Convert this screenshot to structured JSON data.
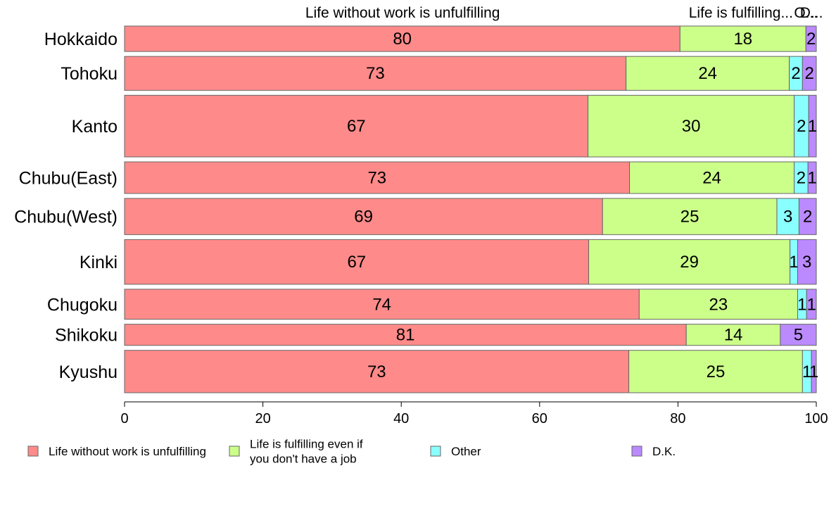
{
  "chart_data": {
    "type": "bar",
    "orientation": "horizontal",
    "stacked": true,
    "categories": [
      "Hokkaido",
      "Tohoku",
      "Kanto",
      "Chubu(East)",
      "Chubu(West)",
      "Kinki",
      "Chugoku",
      "Shikoku",
      "Kyushu"
    ],
    "relative_bar_widths": [
      0.66,
      0.88,
      1.6,
      0.82,
      0.94,
      1.16,
      0.78,
      0.55,
      1.1
    ],
    "series": [
      {
        "name": "Life without work is unfulfilling",
        "color": "#ff8a8a",
        "values": [
          80.3,
          72.5,
          67.0,
          73.0,
          69.1,
          67.1,
          74.4,
          81.2,
          72.9
        ],
        "labels": [
          "80",
          "73",
          "67",
          "73",
          "69",
          "67",
          "74",
          "81",
          "73"
        ]
      },
      {
        "name": "Life is fulfilling even if you don't have a job",
        "color": "#ccff8a",
        "values": [
          18.2,
          23.6,
          29.8,
          23.8,
          25.2,
          29.1,
          22.9,
          13.6,
          25.1
        ],
        "labels": [
          "18",
          "24",
          "30",
          "24",
          "25",
          "29",
          "23",
          "14",
          "25"
        ]
      },
      {
        "name": "Other",
        "color": "#8affff",
        "values": [
          0,
          1.9,
          2.1,
          2.0,
          3.2,
          1.1,
          1.3,
          0,
          1.3
        ],
        "labels": [
          "",
          "2",
          "2",
          "2",
          "3",
          "1",
          "1",
          "",
          "1"
        ]
      },
      {
        "name": "D.K.",
        "color": "#bb8aff",
        "values": [
          1.5,
          2.0,
          1.1,
          1.2,
          2.5,
          2.7,
          1.4,
          5.2,
          0.7
        ],
        "labels": [
          "2",
          "2",
          "1",
          "1",
          "2",
          "3",
          "1",
          "5",
          "1"
        ]
      }
    ],
    "column_headers": [
      {
        "text": "Life without work is unfulfilling",
        "at": 40.2
      },
      {
        "text": "Life is fulfilling...",
        "at": 89.1
      },
      {
        "text": "O...",
        "at": 98.5
      },
      {
        "text": "D...",
        "at": 99.3
      }
    ],
    "x_ticks": [
      "0",
      "20",
      "40",
      "60",
      "80",
      "100"
    ],
    "xlim": [
      0,
      100
    ],
    "legend_position": "bottom",
    "legend": [
      {
        "lines": [
          "Life without work is unfulfilling"
        ],
        "color": "#ff8a8a"
      },
      {
        "lines": [
          "Life is fulfilling even if",
          "you don't have a job"
        ],
        "color": "#ccff8a"
      },
      {
        "lines": [
          "Other"
        ],
        "color": "#8affff"
      },
      {
        "lines": [
          "D.K."
        ],
        "color": "#bb8aff"
      }
    ]
  }
}
